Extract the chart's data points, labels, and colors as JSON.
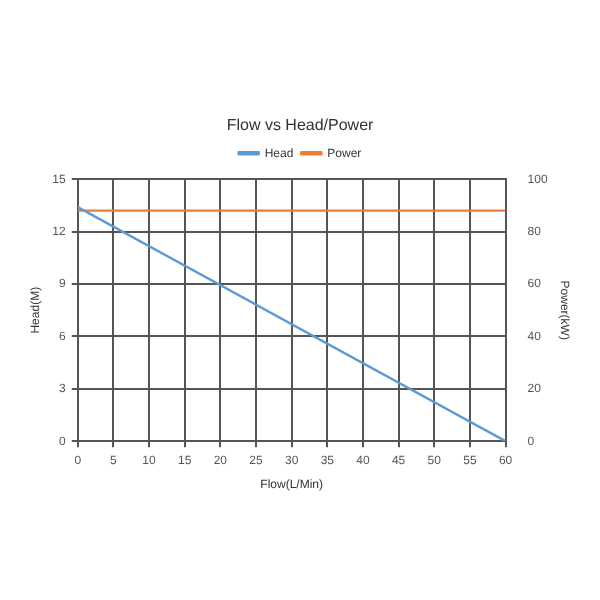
{
  "chart_data": {
    "type": "line",
    "title": "Flow vs Head/Power",
    "xlabel": "Flow(L/Min)",
    "ylabel": "Head(M)",
    "y2label": "Power(kW)",
    "x": [
      0,
      60
    ],
    "series": [
      {
        "name": "Head",
        "color": "#5b9bd5",
        "values": [
          13.4,
          0
        ]
      },
      {
        "name": "Power",
        "color": "#ed7d31",
        "values": [
          88,
          88
        ],
        "axis": "y2"
      }
    ],
    "xlim": [
      0,
      60
    ],
    "xticks": [
      0,
      5,
      10,
      15,
      20,
      25,
      30,
      35,
      40,
      45,
      50,
      55,
      60
    ],
    "ylim": [
      0,
      15
    ],
    "yticks": [
      0,
      3,
      6,
      9,
      12,
      15
    ],
    "y2lim": [
      0,
      100
    ],
    "y2ticks": [
      0,
      20,
      40,
      60,
      80,
      100
    ],
    "grid": true,
    "legend": "top",
    "marker": "none",
    "line_style": "solid"
  }
}
